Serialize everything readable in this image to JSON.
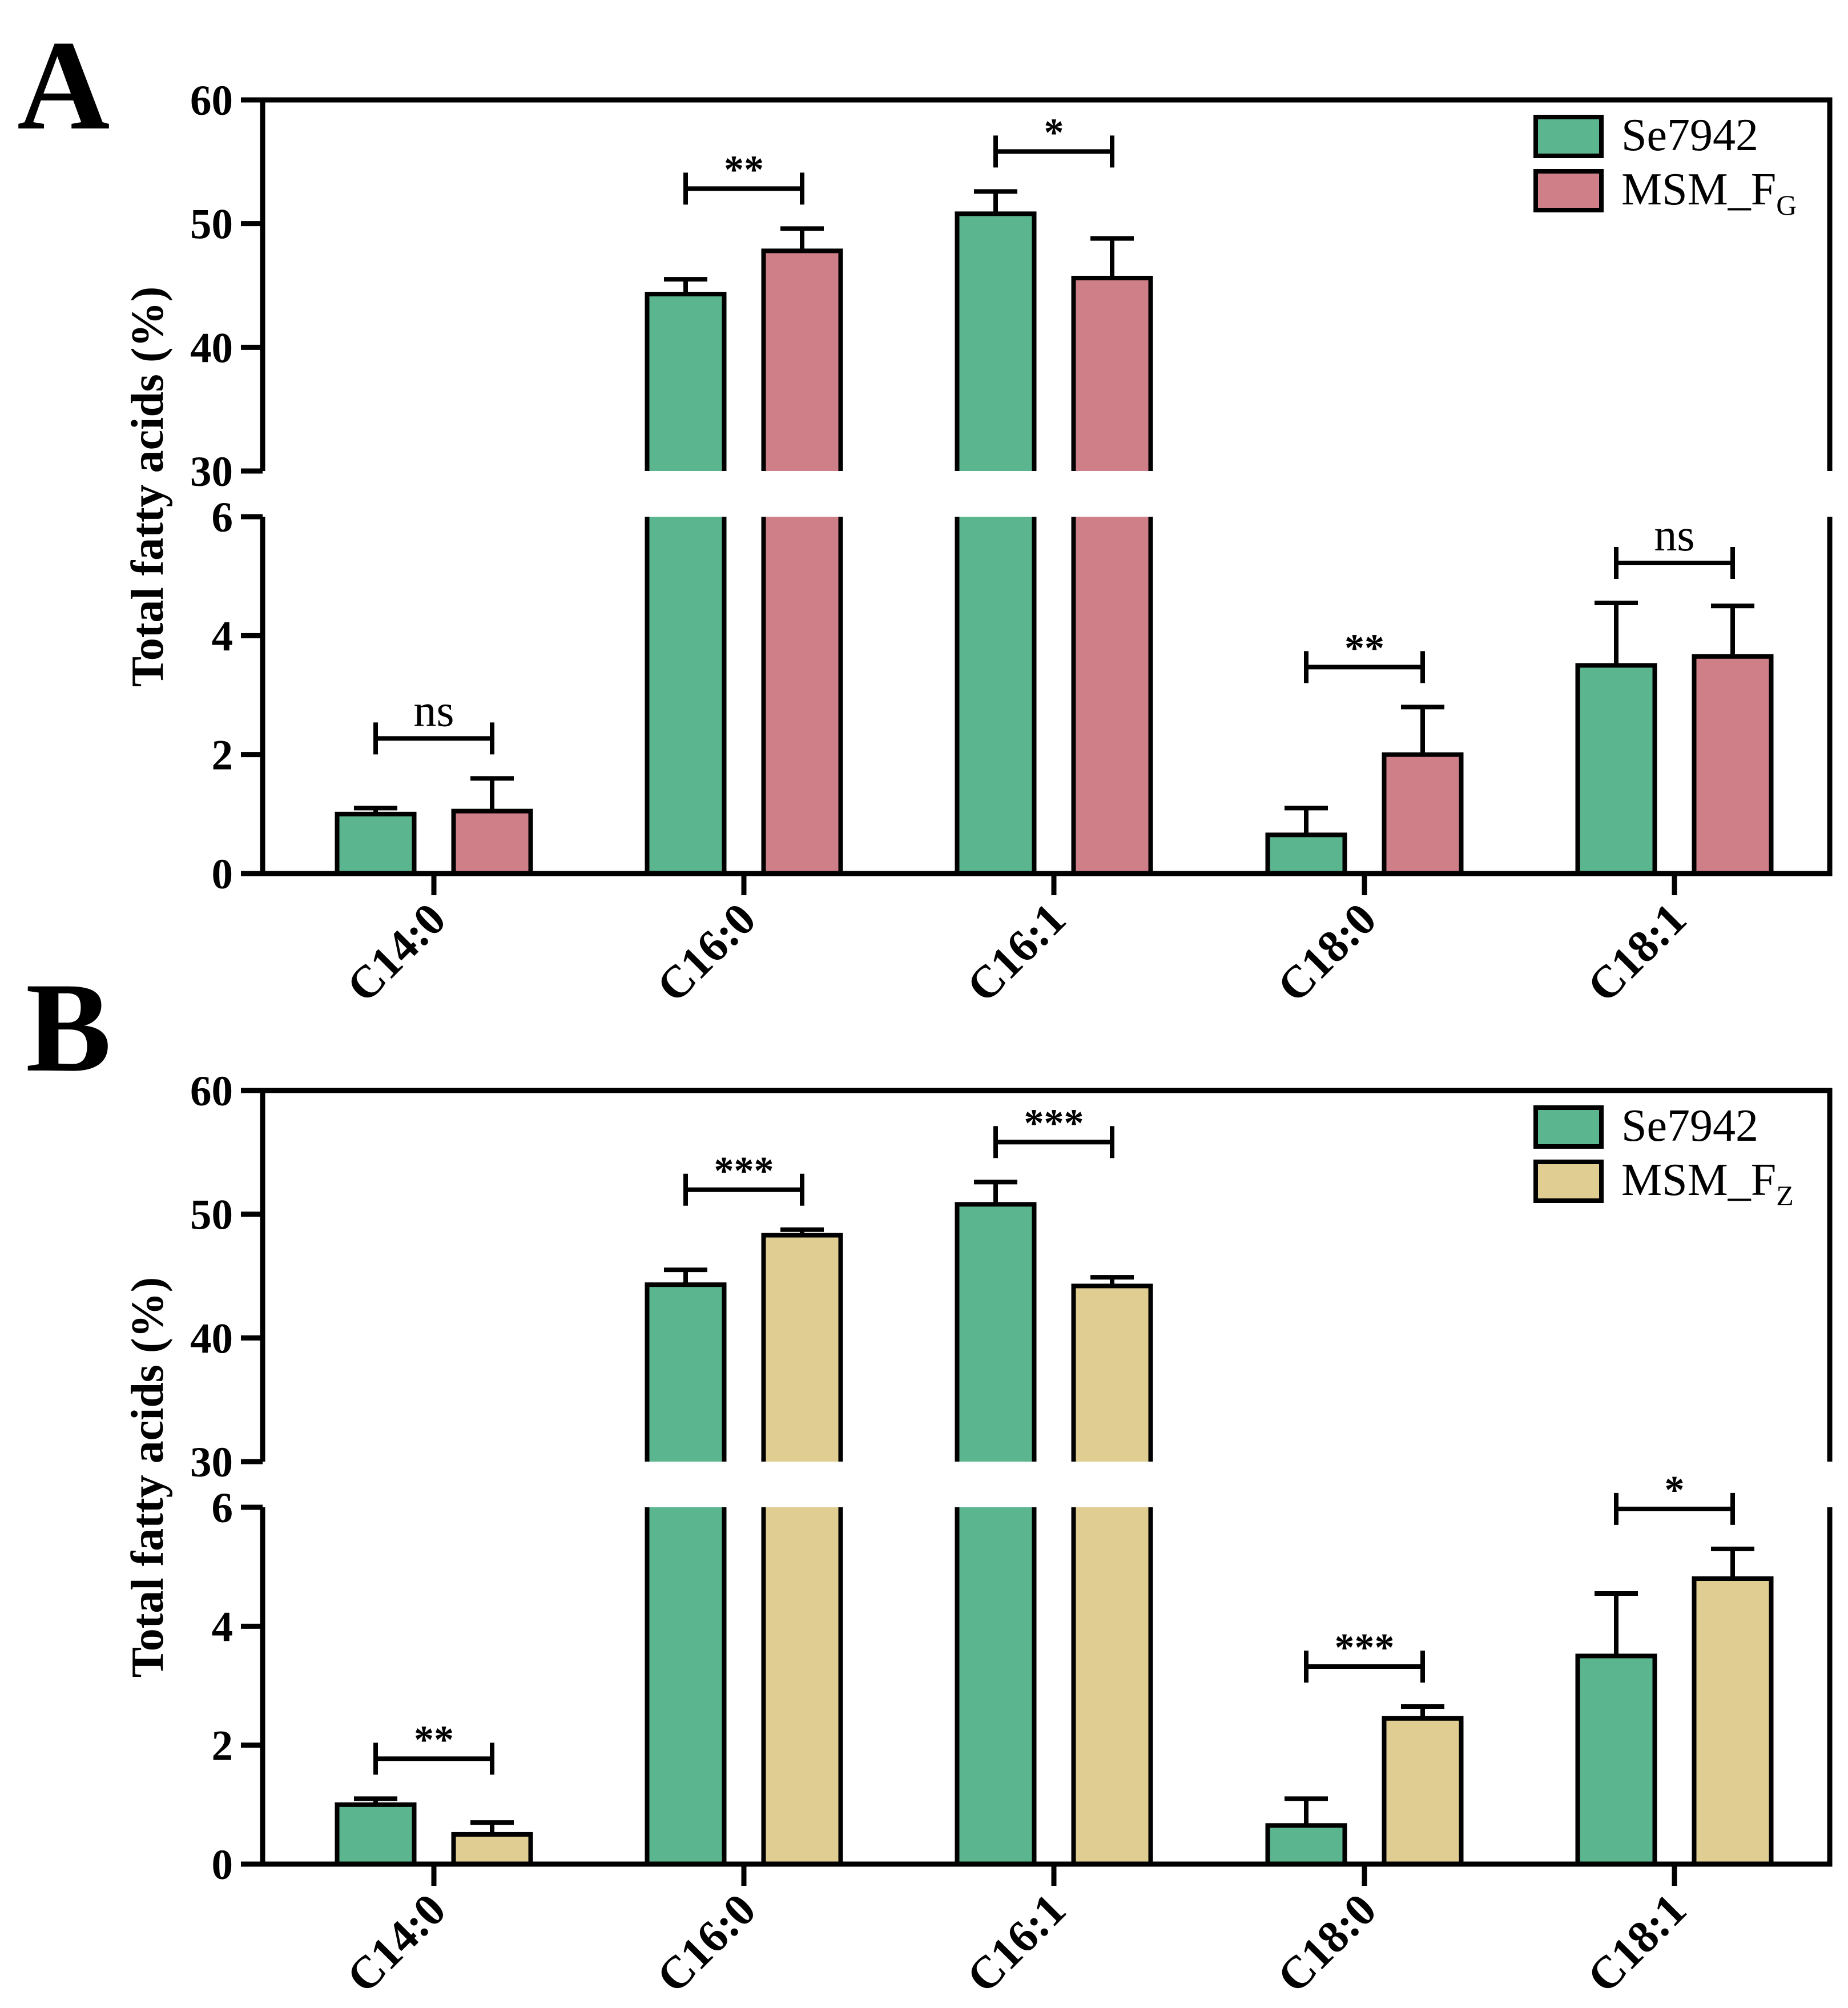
{
  "chart_data": [
    {
      "panel": "A",
      "type": "bar",
      "broken_axis": true,
      "ylabel": "Total fatty acids (%)",
      "categories": [
        "C14:0",
        "C16:0",
        "C16:1",
        "C18:0",
        "C18:1"
      ],
      "lower_ticks": [
        "0",
        "2",
        "4",
        "6"
      ],
      "upper_ticks": [
        "30",
        "40",
        "50",
        "60"
      ],
      "lower_range": [
        0,
        6
      ],
      "upper_range": [
        30,
        60
      ],
      "series": [
        {
          "name": "Se7942",
          "color": "#5bb58f",
          "values": [
            1.0,
            44.3,
            50.8,
            0.65,
            3.5
          ],
          "errors": [
            0.1,
            1.2,
            1.8,
            0.45,
            1.05
          ]
        },
        {
          "name": "MSM_F",
          "subscript": "G",
          "color": "#cf7f88",
          "values": [
            1.05,
            47.8,
            45.6,
            2.0,
            3.65
          ],
          "errors": [
            0.55,
            1.8,
            3.2,
            0.8,
            0.85
          ]
        }
      ],
      "significance": [
        "ns",
        "**",
        "*",
        "**",
        "ns"
      ],
      "legend_position": "top-right"
    },
    {
      "panel": "B",
      "type": "bar",
      "broken_axis": true,
      "ylabel": "Total fatty acids (%)",
      "categories": [
        "C14:0",
        "C16:0",
        "C16:1",
        "C18:0",
        "C18:1"
      ],
      "lower_ticks": [
        "0",
        "2",
        "4",
        "6"
      ],
      "upper_ticks": [
        "30",
        "40",
        "50",
        "60"
      ],
      "lower_range": [
        0,
        6
      ],
      "upper_range": [
        30,
        60
      ],
      "series": [
        {
          "name": "Se7942",
          "color": "#5bb58f",
          "values": [
            1.0,
            44.3,
            50.8,
            0.65,
            3.5
          ],
          "errors": [
            0.1,
            1.2,
            1.8,
            0.45,
            1.05
          ]
        },
        {
          "name": "MSM_F",
          "subscript": "Z",
          "color": "#e0cd91",
          "values": [
            0.5,
            48.3,
            44.2,
            2.45,
            4.8
          ],
          "errors": [
            0.2,
            0.45,
            0.7,
            0.2,
            0.5
          ]
        }
      ],
      "significance": [
        "**",
        "***",
        "***",
        "***",
        "*"
      ],
      "legend_position": "top-right"
    }
  ]
}
